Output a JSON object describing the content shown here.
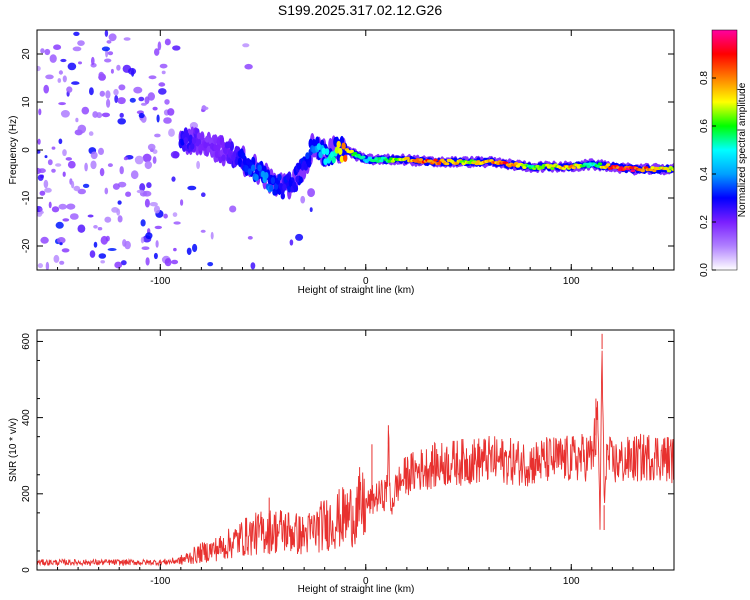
{
  "chart_data": [
    {
      "type": "heatmap",
      "title": "S199.2025.317.02.12.G26",
      "xlabel": "Height of straight line (km)",
      "ylabel": "Frequency (Hz)",
      "xlim": [
        -160,
        150
      ],
      "ylim": [
        -25,
        25
      ],
      "xticks": [
        -100,
        0,
        100
      ],
      "xtick_labels": [
        "-100",
        "0",
        "100"
      ],
      "yticks": [
        -20,
        -10,
        0,
        10,
        20
      ],
      "ytick_labels": [
        "-20",
        "-10",
        "0",
        "10",
        "20"
      ],
      "colorbar": {
        "label": "Normalized spectral amplitude",
        "range": [
          0.0,
          1.0
        ],
        "ticks": [
          0.0,
          0.2,
          0.4,
          0.6,
          0.8
        ],
        "tick_labels": [
          "0.0",
          "0.2",
          "0.4",
          "0.6",
          "0.8"
        ],
        "colors": [
          "#ffffff",
          "#b080ff",
          "#7a1fff",
          "#0000ff",
          "#00a0ff",
          "#00ffff",
          "#00ff00",
          "#ffff00",
          "#ff8000",
          "#ff0000",
          "#ff00a0"
        ]
      },
      "ridge": {
        "x": [
          -90,
          -80,
          -70,
          -60,
          -50,
          -45,
          -40,
          -35,
          -30,
          -25,
          -20,
          -15,
          -10,
          -5,
          0,
          10,
          20,
          30,
          40,
          50,
          60,
          70,
          80,
          90,
          100,
          110,
          120,
          130,
          140,
          150
        ],
        "freq": [
          2,
          2,
          0,
          -2,
          -5,
          -7,
          -8,
          -7,
          -3,
          1,
          -1,
          0,
          0,
          -1,
          -2,
          -2,
          -2,
          -2.5,
          -2.5,
          -2.5,
          -2.5,
          -3,
          -3.5,
          -3.5,
          -3.5,
          -3,
          -3.5,
          -4,
          -4,
          -4
        ],
        "amplitude": [
          0.3,
          0.2,
          0.2,
          0.3,
          0.4,
          0.35,
          0.3,
          0.3,
          0.3,
          0.4,
          0.5,
          0.6,
          0.9,
          0.6,
          0.5,
          0.6,
          0.8,
          0.9,
          0.8,
          0.7,
          0.8,
          0.9,
          0.6,
          0.7,
          0.8,
          0.5,
          0.9,
          0.95,
          0.8,
          0.7
        ]
      }
    },
    {
      "type": "line",
      "title": "",
      "xlabel": "Height of straight line (km)",
      "ylabel": "SNR (10 * v/v)",
      "xlim": [
        -160,
        150
      ],
      "ylim": [
        0,
        630
      ],
      "xticks": [
        -100,
        0,
        100
      ],
      "xtick_labels": [
        "-100",
        "0",
        "100"
      ],
      "yticks": [
        0,
        200,
        400,
        600
      ],
      "ytick_labels": [
        "0",
        "200",
        "400",
        "600"
      ],
      "color": "#e8312f",
      "series": [
        {
          "name": "SNR",
          "x": [
            -160,
            -140,
            -120,
            -100,
            -90,
            -80,
            -70,
            -60,
            -50,
            -40,
            -30,
            -20,
            -10,
            -5,
            0,
            5,
            10,
            11,
            12,
            15,
            20,
            30,
            40,
            50,
            60,
            70,
            80,
            90,
            100,
            110,
            113,
            114,
            115,
            116,
            117,
            120,
            130,
            140,
            150
          ],
          "y": [
            20,
            20,
            20,
            20,
            25,
            45,
            60,
            85,
            100,
            105,
            90,
            120,
            140,
            150,
            170,
            190,
            200,
            330,
            160,
            220,
            250,
            270,
            280,
            285,
            290,
            285,
            280,
            290,
            290,
            300,
            380,
            120,
            580,
            170,
            300,
            280,
            290,
            300,
            290
          ]
        }
      ],
      "spikes": [
        {
          "x": 11,
          "y": 380
        },
        {
          "x": 115,
          "y": 620
        },
        {
          "x": 112,
          "y": 450
        },
        {
          "x": 116,
          "y": 105
        },
        {
          "x": 3,
          "y": 330
        },
        {
          "x": -3,
          "y": 270
        },
        {
          "x": -47,
          "y": 190
        }
      ]
    }
  ]
}
